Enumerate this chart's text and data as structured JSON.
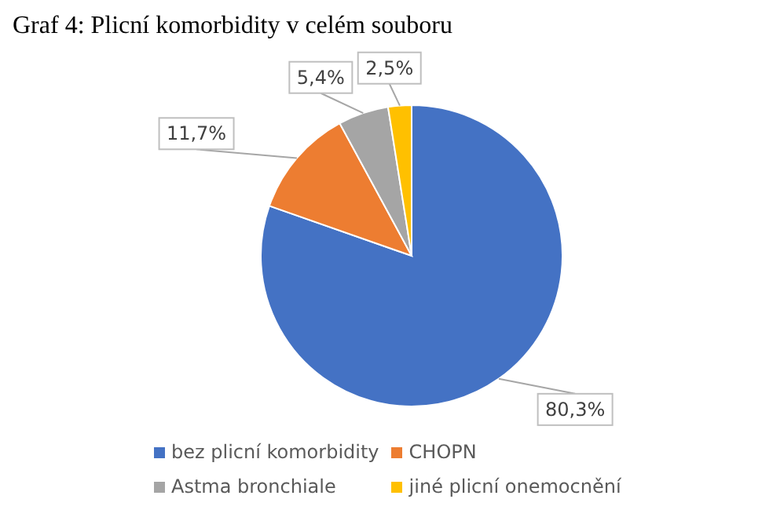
{
  "chart_data": {
    "type": "pie",
    "title": "Graf 4: Plicní komorbidity v celém souboru",
    "categories": [
      "bez plicní komorbidity",
      "CHOPN",
      "Astma bronchiale",
      "jiné plicní onemocnění"
    ],
    "values": [
      80.3,
      11.7,
      5.4,
      2.5
    ],
    "value_labels": [
      "80,3%",
      "11,7%",
      "5,4%",
      "2,5%"
    ],
    "colors": [
      "#4472c4",
      "#ed7d31",
      "#a5a5a5",
      "#ffc000"
    ],
    "legend": "bottom"
  }
}
